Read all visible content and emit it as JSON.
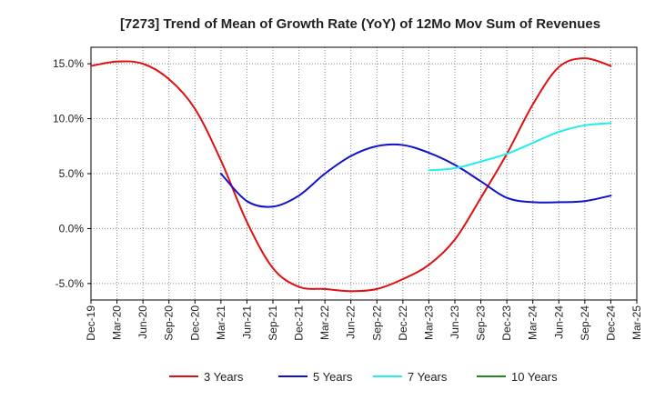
{
  "chart_data": {
    "type": "line",
    "title": "[7273]  Trend of Mean of Growth Rate (YoY) of 12Mo Mov Sum of Revenues",
    "xlabel": "",
    "ylabel": "",
    "ylim": [
      -6.5,
      16.5
    ],
    "yticks": [
      -5.0,
      0.0,
      5.0,
      10.0,
      15.0
    ],
    "ytick_labels": [
      "-5.0%",
      "0.0%",
      "5.0%",
      "10.0%",
      "15.0%"
    ],
    "x_categories": [
      "Dec-19",
      "Mar-20",
      "Jun-20",
      "Sep-20",
      "Dec-20",
      "Mar-21",
      "Jun-21",
      "Sep-21",
      "Dec-21",
      "Mar-22",
      "Jun-22",
      "Sep-22",
      "Dec-22",
      "Mar-23",
      "Jun-23",
      "Sep-23",
      "Dec-23",
      "Mar-24",
      "Jun-24",
      "Sep-24",
      "Dec-24",
      "Mar-25"
    ],
    "grid": true,
    "legend_position": "bottom",
    "series": [
      {
        "name": "3 Years",
        "color": "#dd1111",
        "x_index": [
          0,
          1,
          2,
          3,
          4,
          5,
          6,
          7,
          8,
          9,
          10,
          11,
          12,
          13,
          14,
          15,
          16,
          17,
          18,
          19,
          20
        ],
        "values": [
          14.8,
          15.2,
          15.0,
          13.6,
          10.9,
          6.2,
          0.6,
          -3.6,
          -5.3,
          -5.5,
          -5.7,
          -5.5,
          -4.6,
          -3.3,
          -1.0,
          2.8,
          6.8,
          11.3,
          14.7,
          15.5,
          14.8
        ]
      },
      {
        "name": "5 Years",
        "color": "#1111cc",
        "x_index": [
          5,
          6,
          7,
          8,
          9,
          10,
          11,
          12,
          13,
          14,
          15,
          16,
          17,
          18,
          19,
          20
        ],
        "values": [
          5.0,
          2.5,
          2.0,
          3.0,
          5.0,
          6.6,
          7.5,
          7.6,
          6.9,
          5.8,
          4.3,
          2.8,
          2.4,
          2.4,
          2.5,
          3.0
        ]
      },
      {
        "name": "7 Years",
        "color": "#22eeee",
        "x_index": [
          13,
          14,
          15,
          16,
          17,
          18,
          19,
          20
        ],
        "values": [
          5.3,
          5.5,
          6.1,
          6.8,
          7.8,
          8.8,
          9.4,
          9.6
        ]
      },
      {
        "name": "10 Years",
        "color": "#228822",
        "x_index": [],
        "values": []
      }
    ]
  }
}
